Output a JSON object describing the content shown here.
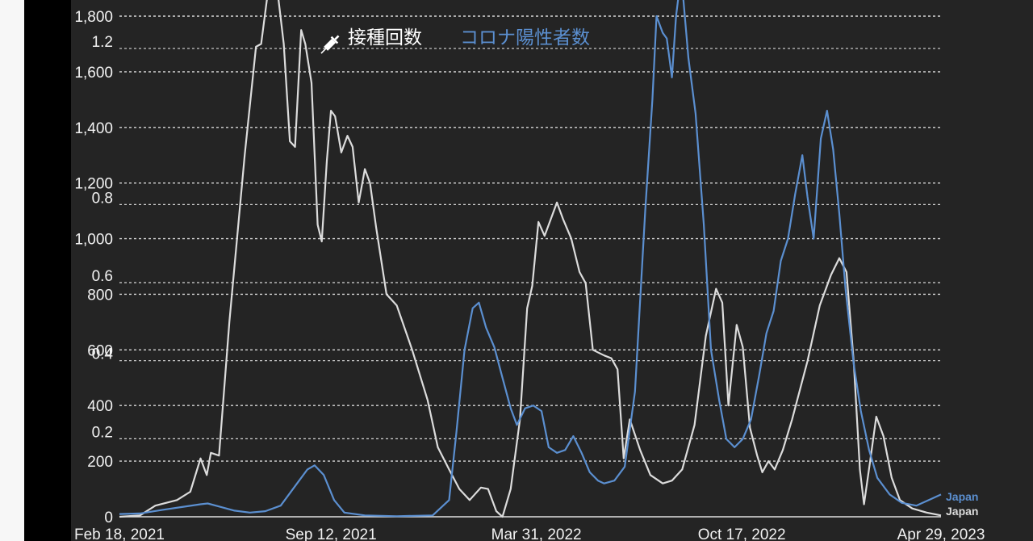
{
  "chart_data": {
    "type": "line",
    "title": "",
    "legend": {
      "position": "top-center",
      "vaccinations_icon": "syringe-icon",
      "vaccinations_label": "接種回数",
      "cases_label": "コロナ陽性者数"
    },
    "grid": true,
    "x_ticks": [
      "Feb 18, 2021",
      "Sep 12, 2021",
      "Mar 31, 2022",
      "Oct 17, 2022",
      "Apr 29, 2023"
    ],
    "x_tick_dates": [
      "2021-02-18",
      "2021-09-12",
      "2022-03-31",
      "2022-10-17",
      "2023-04-29"
    ],
    "xlim": [
      "2021-02-18",
      "2023-04-29"
    ],
    "left_axis": {
      "ticks": [
        "0",
        "200",
        "400",
        "600",
        "800",
        "1,000",
        "1,200",
        "1,400",
        "1,600",
        "1,800"
      ],
      "values": [
        0,
        200,
        400,
        600,
        800,
        1000,
        1200,
        1400,
        1600,
        1800
      ],
      "ylim": [
        0,
        1800
      ]
    },
    "overlay_axis": {
      "ticks": [
        "0.2",
        "0.4",
        "0.6",
        "0.8",
        "1.2"
      ],
      "values": [
        0.2,
        0.4,
        0.6,
        0.8,
        1.2
      ]
    },
    "series": [
      {
        "name": "Japan",
        "color": "#dcdcdc",
        "axis": "left",
        "points": [
          [
            "2021-02-18",
            0
          ],
          [
            "2021-03-10",
            5
          ],
          [
            "2021-03-25",
            40
          ],
          [
            "2021-04-15",
            60
          ],
          [
            "2021-04-28",
            90
          ],
          [
            "2021-05-08",
            210
          ],
          [
            "2021-05-14",
            150
          ],
          [
            "2021-05-18",
            230
          ],
          [
            "2021-05-26",
            220
          ],
          [
            "2021-06-05",
            700
          ],
          [
            "2021-06-20",
            1300
          ],
          [
            "2021-07-01",
            1690
          ],
          [
            "2021-07-06",
            1700
          ],
          [
            "2021-07-12",
            1870
          ],
          [
            "2021-07-20",
            1950
          ],
          [
            "2021-07-28",
            1700
          ],
          [
            "2021-08-03",
            1350
          ],
          [
            "2021-08-08",
            1330
          ],
          [
            "2021-08-14",
            1750
          ],
          [
            "2021-08-18",
            1700
          ],
          [
            "2021-08-24",
            1560
          ],
          [
            "2021-08-30",
            1050
          ],
          [
            "2021-09-03",
            990
          ],
          [
            "2021-09-08",
            1280
          ],
          [
            "2021-09-12",
            1460
          ],
          [
            "2021-09-16",
            1440
          ],
          [
            "2021-09-22",
            1310
          ],
          [
            "2021-09-28",
            1370
          ],
          [
            "2021-10-03",
            1330
          ],
          [
            "2021-10-09",
            1130
          ],
          [
            "2021-10-15",
            1250
          ],
          [
            "2021-10-20",
            1200
          ],
          [
            "2021-10-26",
            1040
          ],
          [
            "2021-11-05",
            800
          ],
          [
            "2021-11-15",
            760
          ],
          [
            "2021-11-30",
            600
          ],
          [
            "2021-12-15",
            420
          ],
          [
            "2021-12-25",
            250
          ],
          [
            "2022-01-05",
            170
          ],
          [
            "2022-01-15",
            100
          ],
          [
            "2022-01-25",
            60
          ],
          [
            "2022-02-05",
            105
          ],
          [
            "2022-02-12",
            100
          ],
          [
            "2022-02-20",
            20
          ],
          [
            "2022-02-26",
            0
          ],
          [
            "2022-03-06",
            100
          ],
          [
            "2022-03-15",
            350
          ],
          [
            "2022-03-22",
            750
          ],
          [
            "2022-03-27",
            830
          ],
          [
            "2022-04-02",
            1060
          ],
          [
            "2022-04-08",
            1010
          ],
          [
            "2022-04-14",
            1070
          ],
          [
            "2022-04-20",
            1130
          ],
          [
            "2022-04-26",
            1070
          ],
          [
            "2022-05-04",
            1000
          ],
          [
            "2022-05-12",
            880
          ],
          [
            "2022-05-18",
            840
          ],
          [
            "2022-05-25",
            600
          ],
          [
            "2022-06-05",
            580
          ],
          [
            "2022-06-12",
            570
          ],
          [
            "2022-06-18",
            530
          ],
          [
            "2022-06-24",
            210
          ],
          [
            "2022-06-30",
            350
          ],
          [
            "2022-07-10",
            240
          ],
          [
            "2022-07-20",
            150
          ],
          [
            "2022-08-01",
            120
          ],
          [
            "2022-08-10",
            130
          ],
          [
            "2022-08-20",
            170
          ],
          [
            "2022-09-01",
            330
          ],
          [
            "2022-09-12",
            650
          ],
          [
            "2022-09-22",
            820
          ],
          [
            "2022-09-28",
            770
          ],
          [
            "2022-10-04",
            400
          ],
          [
            "2022-10-12",
            690
          ],
          [
            "2022-10-18",
            610
          ],
          [
            "2022-10-25",
            320
          ],
          [
            "2022-11-01",
            220
          ],
          [
            "2022-11-06",
            160
          ],
          [
            "2022-11-12",
            200
          ],
          [
            "2022-11-18",
            170
          ],
          [
            "2022-11-26",
            240
          ],
          [
            "2022-12-05",
            350
          ],
          [
            "2022-12-20",
            560
          ],
          [
            "2023-01-01",
            760
          ],
          [
            "2023-01-12",
            870
          ],
          [
            "2023-01-20",
            930
          ],
          [
            "2023-01-27",
            880
          ],
          [
            "2023-02-03",
            560
          ],
          [
            "2023-02-09",
            170
          ],
          [
            "2023-02-13",
            45
          ],
          [
            "2023-02-19",
            200
          ],
          [
            "2023-02-25",
            360
          ],
          [
            "2023-03-04",
            290
          ],
          [
            "2023-03-12",
            140
          ],
          [
            "2023-03-20",
            60
          ],
          [
            "2023-04-01",
            30
          ],
          [
            "2023-04-15",
            15
          ],
          [
            "2023-04-29",
            5
          ]
        ]
      },
      {
        "name": "Japan",
        "color": "#5b8fd0",
        "axis": "left",
        "points": [
          [
            "2021-02-18",
            10
          ],
          [
            "2021-03-10",
            12
          ],
          [
            "2021-04-01",
            25
          ],
          [
            "2021-04-20",
            35
          ],
          [
            "2021-05-08",
            45
          ],
          [
            "2021-05-15",
            48
          ],
          [
            "2021-05-25",
            38
          ],
          [
            "2021-06-10",
            22
          ],
          [
            "2021-06-25",
            15
          ],
          [
            "2021-07-10",
            20
          ],
          [
            "2021-07-25",
            40
          ],
          [
            "2021-08-10",
            120
          ],
          [
            "2021-08-20",
            170
          ],
          [
            "2021-08-27",
            185
          ],
          [
            "2021-09-05",
            150
          ],
          [
            "2021-09-15",
            60
          ],
          [
            "2021-09-25",
            15
          ],
          [
            "2021-10-15",
            5
          ],
          [
            "2021-11-15",
            2
          ],
          [
            "2021-12-20",
            5
          ],
          [
            "2022-01-05",
            60
          ],
          [
            "2022-01-12",
            300
          ],
          [
            "2022-01-20",
            600
          ],
          [
            "2022-01-28",
            750
          ],
          [
            "2022-02-03",
            770
          ],
          [
            "2022-02-10",
            680
          ],
          [
            "2022-02-18",
            610
          ],
          [
            "2022-02-26",
            500
          ],
          [
            "2022-03-06",
            390
          ],
          [
            "2022-03-12",
            330
          ],
          [
            "2022-03-20",
            390
          ],
          [
            "2022-03-28",
            400
          ],
          [
            "2022-04-05",
            380
          ],
          [
            "2022-04-12",
            250
          ],
          [
            "2022-04-20",
            230
          ],
          [
            "2022-04-28",
            240
          ],
          [
            "2022-05-06",
            290
          ],
          [
            "2022-05-14",
            230
          ],
          [
            "2022-05-22",
            160
          ],
          [
            "2022-05-30",
            130
          ],
          [
            "2022-06-05",
            120
          ],
          [
            "2022-06-15",
            130
          ],
          [
            "2022-06-25",
            180
          ],
          [
            "2022-07-05",
            450
          ],
          [
            "2022-07-15",
            1100
          ],
          [
            "2022-07-22",
            1500
          ],
          [
            "2022-07-26",
            1800
          ],
          [
            "2022-08-01",
            1740
          ],
          [
            "2022-08-05",
            1720
          ],
          [
            "2022-08-10",
            1580
          ],
          [
            "2022-08-14",
            1800
          ],
          [
            "2022-08-19",
            1950
          ],
          [
            "2022-08-26",
            1650
          ],
          [
            "2022-09-02",
            1450
          ],
          [
            "2022-09-10",
            1050
          ],
          [
            "2022-09-17",
            600
          ],
          [
            "2022-09-25",
            420
          ],
          [
            "2022-10-02",
            280
          ],
          [
            "2022-10-10",
            250
          ],
          [
            "2022-10-18",
            280
          ],
          [
            "2022-10-26",
            350
          ],
          [
            "2022-11-03",
            510
          ],
          [
            "2022-11-10",
            660
          ],
          [
            "2022-11-17",
            740
          ],
          [
            "2022-11-24",
            920
          ],
          [
            "2022-12-01",
            1000
          ],
          [
            "2022-12-08",
            1160
          ],
          [
            "2022-12-15",
            1300
          ],
          [
            "2022-12-20",
            1150
          ],
          [
            "2022-12-26",
            1000
          ],
          [
            "2023-01-02",
            1360
          ],
          [
            "2023-01-08",
            1460
          ],
          [
            "2023-01-14",
            1320
          ],
          [
            "2023-01-20",
            1090
          ],
          [
            "2023-01-26",
            820
          ],
          [
            "2023-02-03",
            550
          ],
          [
            "2023-02-10",
            380
          ],
          [
            "2023-02-18",
            240
          ],
          [
            "2023-02-26",
            140
          ],
          [
            "2023-03-10",
            80
          ],
          [
            "2023-03-22",
            50
          ],
          [
            "2023-04-05",
            40
          ],
          [
            "2023-04-20",
            65
          ],
          [
            "2023-04-29",
            80
          ]
        ]
      }
    ]
  }
}
